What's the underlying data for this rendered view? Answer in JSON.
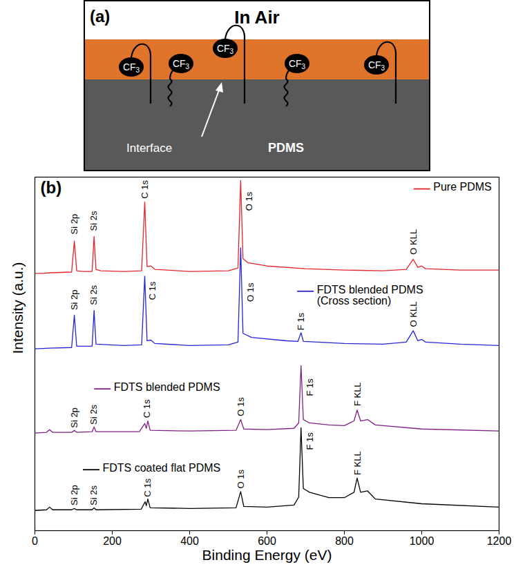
{
  "panel_a": {
    "letter": "(a)",
    "title": "In Air",
    "end_groups": [
      "CF3",
      "CF3",
      "CF3",
      "CF3",
      "CF3"
    ],
    "interface_label": "Interface",
    "substrate_label": "PDMS"
  },
  "chart_data": {
    "type": "line",
    "panel_label": "(b)",
    "x_label": "Binding Energy (eV)",
    "y_label": "Intensity (a.u.)",
    "xlim": [
      0,
      1200
    ],
    "xticks": [
      0,
      200,
      400,
      600,
      800,
      1000,
      1200
    ],
    "ylim": [
      0,
      105
    ],
    "tick_labels": "x",
    "series": [
      {
        "name": "Pure PDMS",
        "color": "#e3242b",
        "label_position": [
          980,
          101.4
        ],
        "x": [
          0,
          20,
          40,
          95,
          102,
          108,
          125,
          148,
          153,
          158,
          170,
          230,
          276,
          284,
          290,
          300,
          310,
          400,
          500,
          525,
          532,
          538,
          550,
          600,
          700,
          800,
          900,
          960,
          978,
          990,
          1000,
          1010,
          1100,
          1200
        ],
        "values": [
          76.4,
          76.4,
          76.6,
          76.8,
          86,
          77.2,
          77,
          77,
          87.4,
          77.6,
          77.2,
          77,
          77.2,
          97.6,
          78.4,
          78.6,
          77.6,
          77,
          77.2,
          78,
          104,
          80.8,
          79.6,
          78.6,
          77.8,
          77.4,
          77.2,
          77.6,
          80.6,
          78.2,
          78.6,
          77.8,
          77.4,
          77.4
        ]
      },
      {
        "name": "FDTS blended PDMS (Cross section)",
        "color": "#2424d6",
        "label_position": [
          679,
          71
        ],
        "x": [
          0,
          40,
          95,
          102,
          108,
          148,
          153,
          158,
          230,
          276,
          284,
          290,
          300,
          310,
          400,
          500,
          525,
          532,
          538,
          560,
          650,
          680,
          688,
          694,
          800,
          900,
          960,
          978,
          990,
          1000,
          1010,
          1100,
          1200
        ],
        "values": [
          54,
          54.2,
          54.4,
          64,
          54.8,
          54.8,
          65.4,
          55.4,
          55,
          55.2,
          75.6,
          56.4,
          56.6,
          55.6,
          55,
          55.2,
          56,
          84,
          58.6,
          57.4,
          56.4,
          56.2,
          58.8,
          56.2,
          55.6,
          55.4,
          56,
          59.4,
          56.4,
          56.8,
          56,
          55.4,
          55
        ]
      },
      {
        "name": "FDTS blended PDMS",
        "color": "#7f1f86",
        "label_position": [
          154,
          42
        ],
        "x": [
          0,
          30,
          38,
          46,
          95,
          102,
          108,
          148,
          153,
          158,
          270,
          284,
          288,
          292,
          298,
          400,
          520,
          532,
          540,
          600,
          670,
          682,
          688,
          694,
          710,
          760,
          800,
          825,
          833,
          842,
          860,
          880,
          1000,
          1200
        ],
        "values": [
          29,
          29.2,
          30,
          29.2,
          29.2,
          29.8,
          29.2,
          29.4,
          30.8,
          29.4,
          29.4,
          31.8,
          30.4,
          32.6,
          29.8,
          29.6,
          29.8,
          33,
          30.2,
          30,
          30.4,
          32,
          49,
          33,
          32,
          31.4,
          31.2,
          32.6,
          35.8,
          32.6,
          33,
          31.4,
          30.2,
          29.6
        ]
      },
      {
        "name": "FDTS coated flat PDMS",
        "color": "#000000",
        "label_position": [
          125,
          18
        ],
        "x": [
          0,
          30,
          38,
          46,
          95,
          102,
          108,
          148,
          153,
          158,
          275,
          285,
          288,
          292,
          298,
          400,
          520,
          532,
          540,
          600,
          670,
          682,
          688,
          694,
          710,
          760,
          800,
          825,
          833,
          842,
          860,
          880,
          1000,
          1200
        ],
        "values": [
          6,
          6.2,
          7,
          6.2,
          6.2,
          6.6,
          6.2,
          6.2,
          6.8,
          6.2,
          6.4,
          8.6,
          7.4,
          9.4,
          6.8,
          6.6,
          6.8,
          11.6,
          7.2,
          7,
          7.6,
          10,
          30.6,
          12.5,
          11.4,
          9.8,
          9.8,
          11.4,
          15.6,
          11.4,
          11.8,
          9.4,
          8,
          7
        ]
      }
    ],
    "annotations": [
      {
        "text": "Si 2p",
        "x": 102,
        "y": 88
      },
      {
        "text": "Si 2s",
        "x": 153,
        "y": 89
      },
      {
        "text": "C 1s",
        "x": 284,
        "y": 98.6
      },
      {
        "text": "O 1s",
        "x": 555,
        "y": 95
      },
      {
        "text": "O KLL",
        "x": 980,
        "y": 82
      },
      {
        "text": "Si 2p",
        "x": 102,
        "y": 65.5
      },
      {
        "text": "Si 2s",
        "x": 153,
        "y": 67
      },
      {
        "text": "C 1s",
        "x": 305,
        "y": 68.5
      },
      {
        "text": "O 1s",
        "x": 557,
        "y": 68
      },
      {
        "text": "F 1s",
        "x": 688,
        "y": 59.5
      },
      {
        "text": "O KLL",
        "x": 980,
        "y": 60.5
      },
      {
        "text": "Si 2p",
        "x": 102,
        "y": 30.5
      },
      {
        "text": "Si 2s",
        "x": 153,
        "y": 31.5
      },
      {
        "text": "C 1s",
        "x": 290,
        "y": 33.5
      },
      {
        "text": "O 1s",
        "x": 532,
        "y": 34
      },
      {
        "text": "F 1s",
        "x": 712,
        "y": 40
      },
      {
        "text": "F KLL",
        "x": 835,
        "y": 37
      },
      {
        "text": "Si 2p",
        "x": 102,
        "y": 7.5
      },
      {
        "text": "Si 2s",
        "x": 153,
        "y": 7.5
      },
      {
        "text": "C 1s",
        "x": 292,
        "y": 10
      },
      {
        "text": "O 1s",
        "x": 532,
        "y": 12.5
      },
      {
        "text": "F 1s",
        "x": 712,
        "y": 24
      },
      {
        "text": "F KLL",
        "x": 835,
        "y": 16.5
      }
    ]
  }
}
